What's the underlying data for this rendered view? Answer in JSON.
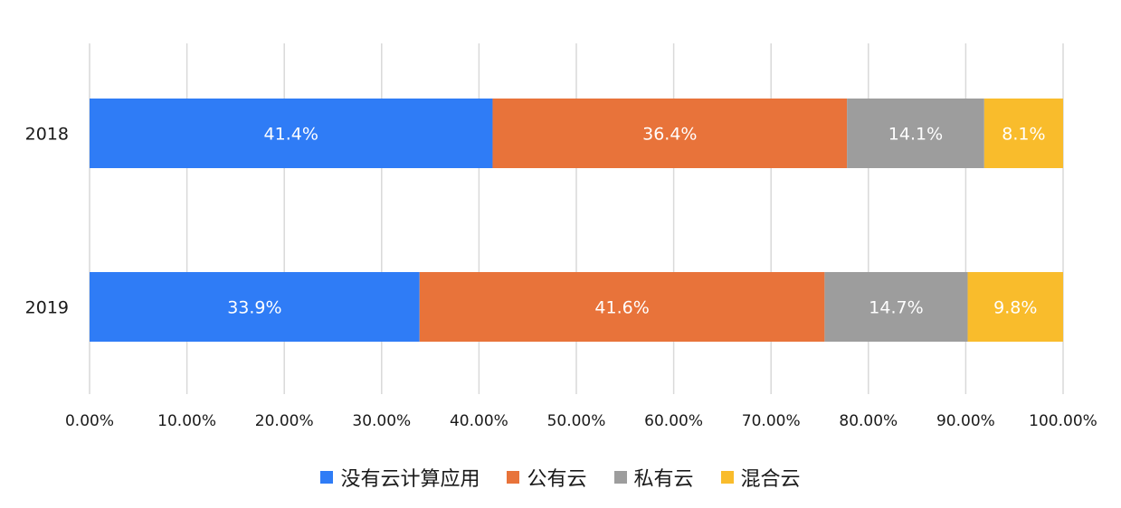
{
  "chart_data": {
    "type": "bar",
    "orientation": "horizontal",
    "stacked": true,
    "categories": [
      "2018",
      "2019"
    ],
    "series": [
      {
        "name": "没有云计算应用",
        "values": [
          41.4,
          33.9
        ],
        "labels": [
          "41.4%",
          "33.9%"
        ],
        "color": "#2f7cf6"
      },
      {
        "name": "公有云",
        "values": [
          36.4,
          41.6
        ],
        "labels": [
          "36.4%",
          "41.6%"
        ],
        "color": "#e8733a"
      },
      {
        "name": "私有云",
        "values": [
          14.1,
          14.7
        ],
        "labels": [
          "14.1%",
          "14.7%"
        ],
        "color": "#9d9d9d"
      },
      {
        "name": "混合云",
        "values": [
          8.1,
          9.8
        ],
        "labels": [
          "8.1%",
          "9.8%"
        ],
        "color": "#f9bc2c"
      }
    ],
    "xlim": [
      0,
      100
    ],
    "x_ticks": [
      "0.00%",
      "10.00%",
      "20.00%",
      "30.00%",
      "40.00%",
      "50.00%",
      "60.00%",
      "70.00%",
      "80.00%",
      "90.00%",
      "100.00%"
    ],
    "grid": true,
    "legend_position": "bottom",
    "title": "",
    "xlabel": "",
    "ylabel": ""
  }
}
